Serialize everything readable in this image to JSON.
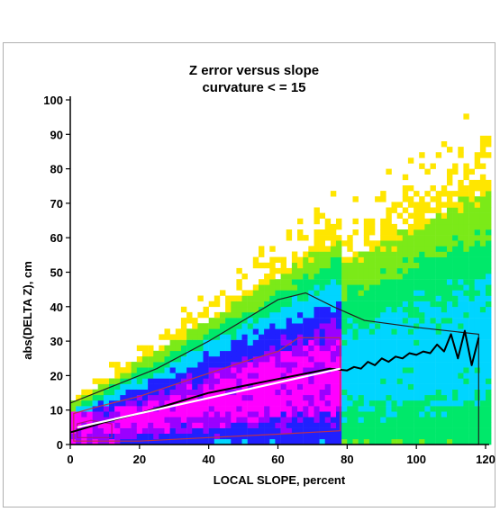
{
  "chart_data": {
    "type": "heatmap",
    "title": [
      "Z error versus slope",
      "curvature < = 15"
    ],
    "xlabel": "LOCAL SLOPE, percent",
    "ylabel": "abs(DELTA Z), cm",
    "xlim": [
      0,
      120
    ],
    "ylim": [
      0,
      100
    ],
    "xticks": [
      0,
      20,
      40,
      60,
      80,
      100,
      120
    ],
    "yticks": [
      0,
      10,
      20,
      30,
      40,
      50,
      60,
      70,
      80,
      90,
      100
    ],
    "color_scale": [
      "#ff00ff",
      "#9b00ff",
      "#2020ff",
      "#00d5ff",
      "#00e86a",
      "#7bea18",
      "#ffe600"
    ],
    "density_colors_low_to_high": [
      "yellow",
      "green",
      "cyan",
      "blue",
      "purple",
      "magenta"
    ],
    "series": [
      {
        "color": "#000000",
        "x": [
          0,
          5,
          10,
          20,
          30,
          40,
          50,
          60,
          70,
          75,
          80,
          82,
          84,
          86,
          88,
          90,
          92,
          94,
          96,
          98,
          100,
          102,
          104,
          106,
          108,
          110,
          112,
          114,
          116,
          118
        ],
        "y": [
          3.5,
          5,
          6.5,
          9,
          12,
          15,
          17,
          19,
          21,
          22,
          21.5,
          22.5,
          22,
          24,
          23,
          25,
          24,
          25.5,
          25,
          26.5,
          26,
          27,
          26.5,
          29,
          27,
          32,
          25,
          33,
          23,
          31
        ]
      },
      {
        "color": "#ffffff",
        "x": [
          2,
          78
        ],
        "y": [
          5,
          22
        ]
      }
    ]
  }
}
